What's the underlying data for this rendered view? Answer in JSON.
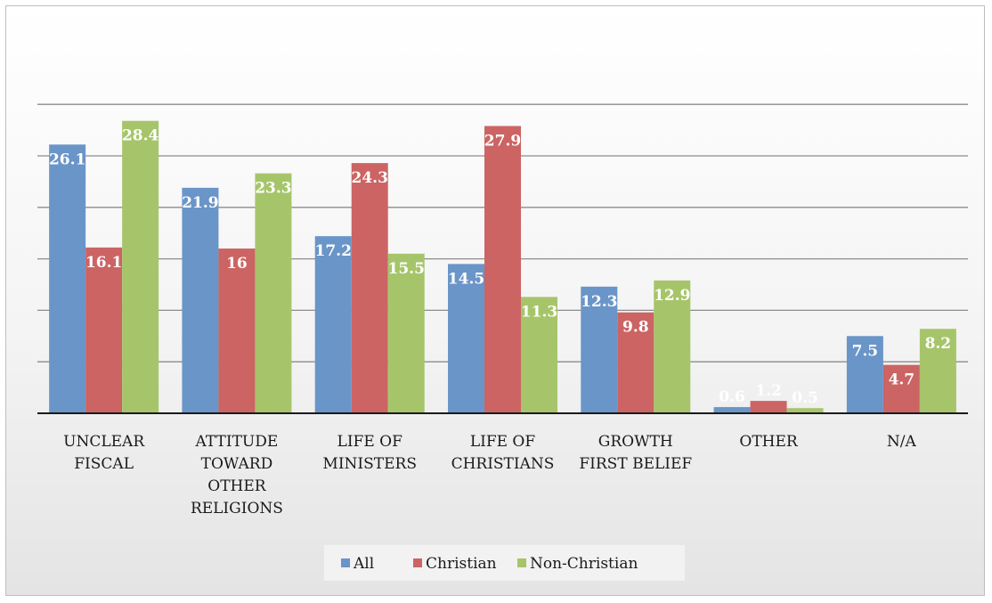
{
  "chart_data": {
    "type": "bar",
    "title": "",
    "xlabel": "",
    "ylabel": "",
    "categories": [
      [
        "UNCLEAR",
        "FISCAL"
      ],
      [
        "ATTITUDE",
        "TOWARD",
        "OTHER",
        "RELIGIONS"
      ],
      [
        "LIFE OF",
        "MINISTERS"
      ],
      [
        "LIFE OF",
        "CHRISTIANS"
      ],
      [
        "GROWTH",
        "FIRST BELIEF"
      ],
      [
        "OTHER"
      ],
      [
        "N/A"
      ]
    ],
    "series": [
      {
        "name": "All",
        "color": "#6a95c8",
        "values": [
          26.1,
          21.9,
          17.2,
          14.5,
          12.3,
          0.6,
          7.5
        ]
      },
      {
        "name": "Christian",
        "color": "#cc6464",
        "values": [
          16.1,
          16,
          24.3,
          27.9,
          9.8,
          1.2,
          4.7
        ]
      },
      {
        "name": "Non-Christian",
        "color": "#a6c56a",
        "values": [
          28.4,
          23.3,
          15.5,
          11.3,
          12.9,
          0.5,
          8.2
        ]
      }
    ],
    "ylim": [
      0,
      30
    ],
    "grid": true,
    "legend_position": "bottom",
    "data_labels": true
  }
}
